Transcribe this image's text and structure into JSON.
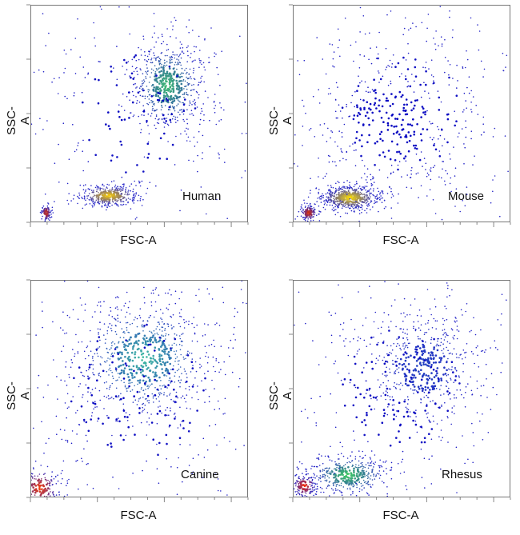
{
  "chart_data": [
    {
      "type": "scatter",
      "name": "Human",
      "xlabel": "FSC-A",
      "ylabel": "SSC-A",
      "xlim": [
        0,
        1
      ],
      "ylim": [
        0,
        1
      ],
      "grid": false,
      "populations": [
        {
          "center": [
            0.07,
            0.04
          ],
          "spread": [
            0.012,
            0.02
          ],
          "weight": 0.06,
          "peak_color": "#e03000"
        },
        {
          "center": [
            0.36,
            0.12
          ],
          "spread": [
            0.07,
            0.025
          ],
          "weight": 0.28,
          "peak_color": "#ffd200"
        },
        {
          "center": [
            0.63,
            0.63
          ],
          "spread": [
            0.09,
            0.11
          ],
          "weight": 0.46,
          "peak_color": "#40c070"
        },
        {
          "center": [
            0.5,
            0.5
          ],
          "spread": [
            0.35,
            0.35
          ],
          "weight": 0.2,
          "peak_color": "#0000c0"
        }
      ]
    },
    {
      "type": "scatter",
      "name": "Mouse",
      "xlabel": "FSC-A",
      "ylabel": "SSC-A",
      "xlim": [
        0,
        1
      ],
      "ylim": [
        0,
        1
      ],
      "grid": false,
      "populations": [
        {
          "center": [
            0.07,
            0.04
          ],
          "spread": [
            0.02,
            0.02
          ],
          "weight": 0.1,
          "peak_color": "#e03000"
        },
        {
          "center": [
            0.26,
            0.11
          ],
          "spread": [
            0.07,
            0.03
          ],
          "weight": 0.42,
          "peak_color": "#ffe000"
        },
        {
          "center": [
            0.45,
            0.45
          ],
          "spread": [
            0.22,
            0.22
          ],
          "weight": 0.28,
          "peak_color": "#0000c0"
        },
        {
          "center": [
            0.5,
            0.5
          ],
          "spread": [
            0.35,
            0.35
          ],
          "weight": 0.2,
          "peak_color": "#0000c0"
        }
      ]
    },
    {
      "type": "scatter",
      "name": "Canine",
      "xlabel": "FSC-A",
      "ylabel": "SSC-A",
      "xlim": [
        0,
        1
      ],
      "ylim": [
        0,
        1
      ],
      "grid": false,
      "populations": [
        {
          "center": [
            0.04,
            0.04
          ],
          "spread": [
            0.05,
            0.05
          ],
          "weight": 0.14,
          "peak_color": "#ff4000"
        },
        {
          "center": [
            0.52,
            0.64
          ],
          "spread": [
            0.17,
            0.15
          ],
          "weight": 0.58,
          "peak_color": "#40c0a0"
        },
        {
          "center": [
            0.5,
            0.5
          ],
          "spread": [
            0.4,
            0.4
          ],
          "weight": 0.28,
          "peak_color": "#0000c0"
        }
      ]
    },
    {
      "type": "scatter",
      "name": "Rhesus",
      "xlabel": "FSC-A",
      "ylabel": "SSC-A",
      "xlim": [
        0,
        1
      ],
      "ylim": [
        0,
        1
      ],
      "grid": false,
      "populations": [
        {
          "center": [
            0.05,
            0.05
          ],
          "spread": [
            0.03,
            0.03
          ],
          "weight": 0.1,
          "peak_color": "#ff3000"
        },
        {
          "center": [
            0.25,
            0.1
          ],
          "spread": [
            0.1,
            0.05
          ],
          "weight": 0.3,
          "peak_color": "#40d060"
        },
        {
          "center": [
            0.6,
            0.6
          ],
          "spread": [
            0.14,
            0.14
          ],
          "weight": 0.38,
          "peak_color": "#2040c0"
        },
        {
          "center": [
            0.5,
            0.5
          ],
          "spread": [
            0.35,
            0.35
          ],
          "weight": 0.22,
          "peak_color": "#0000c0"
        }
      ]
    }
  ]
}
